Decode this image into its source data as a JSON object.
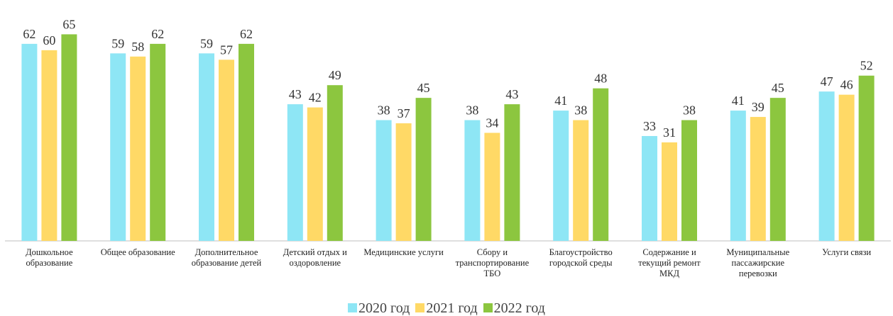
{
  "chart_data": {
    "type": "bar",
    "categories": [
      "Дошкольное образование",
      "Общее образование",
      "Дополнительное образование детей",
      "Детский отдых и оздоровление",
      "Медицинские услуги",
      "Сбору и транспортирование ТБО",
      "Благоустройство городской среды",
      "Содержание и текущий ремонт МКД",
      "Муниципальные пассажирские перевозки",
      "Услуги связи"
    ],
    "series": [
      {
        "name": "2020 год",
        "color": "#8ee6f5",
        "values": [
          62,
          59,
          59,
          43,
          38,
          38,
          41,
          33,
          41,
          47
        ]
      },
      {
        "name": "2021 год",
        "color": "#ffd966",
        "values": [
          60,
          58,
          57,
          42,
          37,
          34,
          38,
          31,
          39,
          46
        ]
      },
      {
        "name": "2022 год",
        "color": "#8cc63f",
        "values": [
          65,
          62,
          62,
          49,
          45,
          43,
          48,
          38,
          45,
          52
        ]
      }
    ],
    "ylim": [
      0,
      70
    ],
    "legend": "bottom"
  }
}
